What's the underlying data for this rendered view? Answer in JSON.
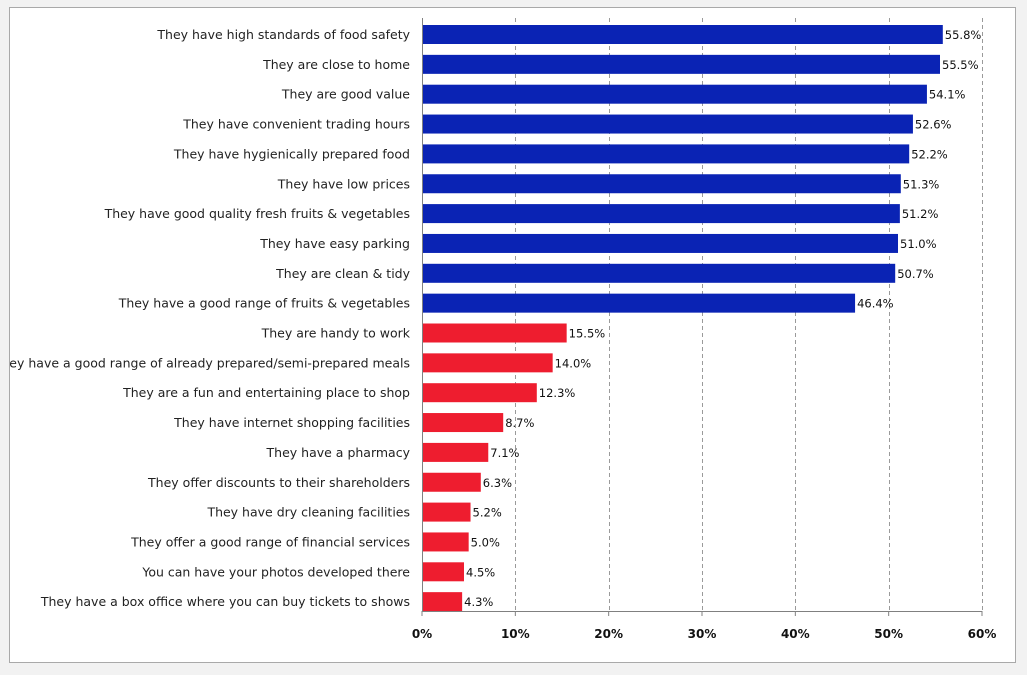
{
  "chart_data": {
    "type": "bar",
    "orientation": "horizontal",
    "title": "",
    "xlabel": "",
    "ylabel": "",
    "xlim": [
      0,
      60
    ],
    "x_ticks": [
      "0%",
      "10%",
      "20%",
      "30%",
      "40%",
      "50%",
      "60%"
    ],
    "grid": "vertical-dashed",
    "legend": "none",
    "categories": [
      "They have high standards of food safety",
      "They are close to home",
      "They are good value",
      "They have convenient trading hours",
      "They have hygienically prepared food",
      "They have low prices",
      "They have good quality fresh fruits & vegetables",
      "They have easy parking",
      "They are clean & tidy",
      "They have a good range of fruits & vegetables",
      "They are handy to work",
      "They have a good range of already prepared/semi-prepared meals",
      "They are a fun and entertaining place to shop",
      "They have internet shopping facilities",
      "They have a pharmacy",
      "They offer discounts to their shareholders",
      "They have dry cleaning facilities",
      "They offer a good range of financial services",
      "You can have your photos developed there",
      "They have a box office where you can buy tickets to shows"
    ],
    "values": [
      55.8,
      55.5,
      54.1,
      52.6,
      52.2,
      51.3,
      51.2,
      51.0,
      50.7,
      46.4,
      15.5,
      14.0,
      12.3,
      8.7,
      7.1,
      6.3,
      5.2,
      5.0,
      4.5,
      4.3
    ],
    "value_labels": [
      "55.8%",
      "55.5%",
      "54.1%",
      "52.6%",
      "52.2%",
      "51.3%",
      "51.2%",
      "51.0%",
      "50.7%",
      "46.4%",
      "15.5%",
      "14.0%",
      "12.3%",
      "8.7%",
      "7.1%",
      "6.3%",
      "5.2%",
      "5.0%",
      "4.5%",
      "4.3%"
    ],
    "bar_colors": [
      "#0a23b4",
      "#0a23b4",
      "#0a23b4",
      "#0a23b4",
      "#0a23b4",
      "#0a23b4",
      "#0a23b4",
      "#0a23b4",
      "#0a23b4",
      "#0a23b4",
      "#ee1d2f",
      "#ee1d2f",
      "#ee1d2f",
      "#ee1d2f",
      "#ee1d2f",
      "#ee1d2f",
      "#ee1d2f",
      "#ee1d2f",
      "#ee1d2f",
      "#ee1d2f"
    ]
  }
}
